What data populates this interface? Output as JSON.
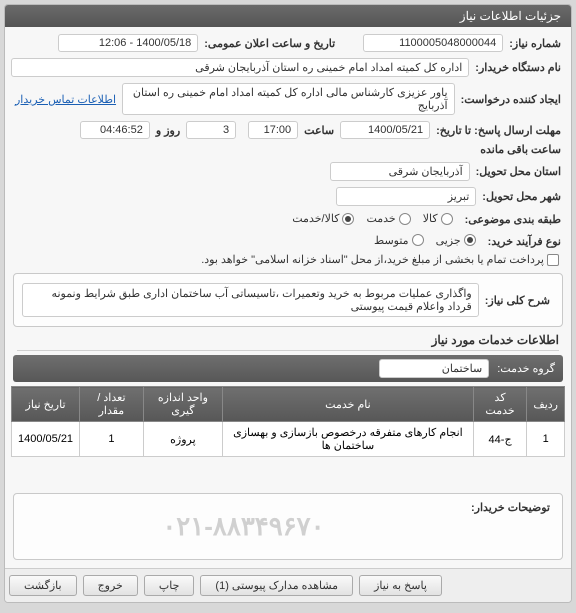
{
  "panel": {
    "title": "جزئیات اطلاعات نیاز"
  },
  "labels": {
    "need_no": "شماره نیاز:",
    "announce": "تاریخ و ساعت اعلان عمومی:",
    "buyer_org": "نام دستگاه خریدار:",
    "requester": "ایجاد کننده درخواست:",
    "deadline": "مهلت ارسال پاسخ: تا تاریخ:",
    "hour": "ساعت",
    "day_and": "روز و",
    "remain_suffix": "ساعت باقی مانده",
    "deliv_prov": "استان محل تحویل:",
    "deliv_city": "شهر محل تحویل:",
    "subject_cat": "طبقه بندی موضوعی:",
    "purchase_type": "نوع فرآیند خرید:",
    "purchase_note": "پرداخت تمام یا بخشی از مبلغ خرید،از محل \"اسناد خزانه اسلامی\" خواهد بود.",
    "overall_desc": "شرح کلی نیاز:",
    "services_info": "اطلاعات خدمات مورد نیاز",
    "service_group": "گروه خدمت:",
    "contact_link": "اطلاعات تماس خریدار",
    "buyer_notes": "توضیحات خریدار:"
  },
  "values": {
    "need_no": "1100005048000044",
    "announce": "1400/05/18 - 12:06",
    "buyer_org": "اداره کل کمیته امداد امام خمینی  ره  استان آذربایجان شرقی",
    "requester": "یاور عزیزی کارشناس مالی اداره کل کمیته امداد امام خمینی  ره  استان آذربایج",
    "deadline_date": "1400/05/21",
    "deadline_time": "17:00",
    "days_left": "3",
    "time_left": "04:46:52",
    "deliv_prov": "آذربایجان شرقی",
    "deliv_city": "تبریز",
    "overall_desc": "واگذاری عملیات مربوط به خرید وتعمیرات ،تاسیساتی آب ساختمان اداری طبق شرایط ونمونه قرداد واعلام قیمت پیوستی",
    "service_group": "ساختمان",
    "phone": "۰۲۱-۸۸۳۴۹۶۷۰"
  },
  "subject_cat": {
    "options": [
      "کالا",
      "خدمت",
      "کالا/خدمت"
    ],
    "selected": 2
  },
  "purchase_type": {
    "options": [
      "جزیی",
      "متوسط"
    ],
    "selected": 0,
    "note_checked": false
  },
  "grid": {
    "headers": [
      "ردیف",
      "کد خدمت",
      "نام خدمت",
      "واحد اندازه گیری",
      "تعداد / مقدار",
      "تاریخ نیاز"
    ],
    "rows": [
      [
        "1",
        "ج-44",
        "انجام کارهای متفرقه درخصوص بازسازی و بهسازی ساختمان ها",
        "پروژه",
        "1",
        "1400/05/21"
      ]
    ]
  },
  "buttons": {
    "reply": "پاسخ به نیاز",
    "attachments": "مشاهده مدارک پیوستی (1)",
    "print": "چاپ",
    "exit": "خروج",
    "back": "بازگشت"
  }
}
